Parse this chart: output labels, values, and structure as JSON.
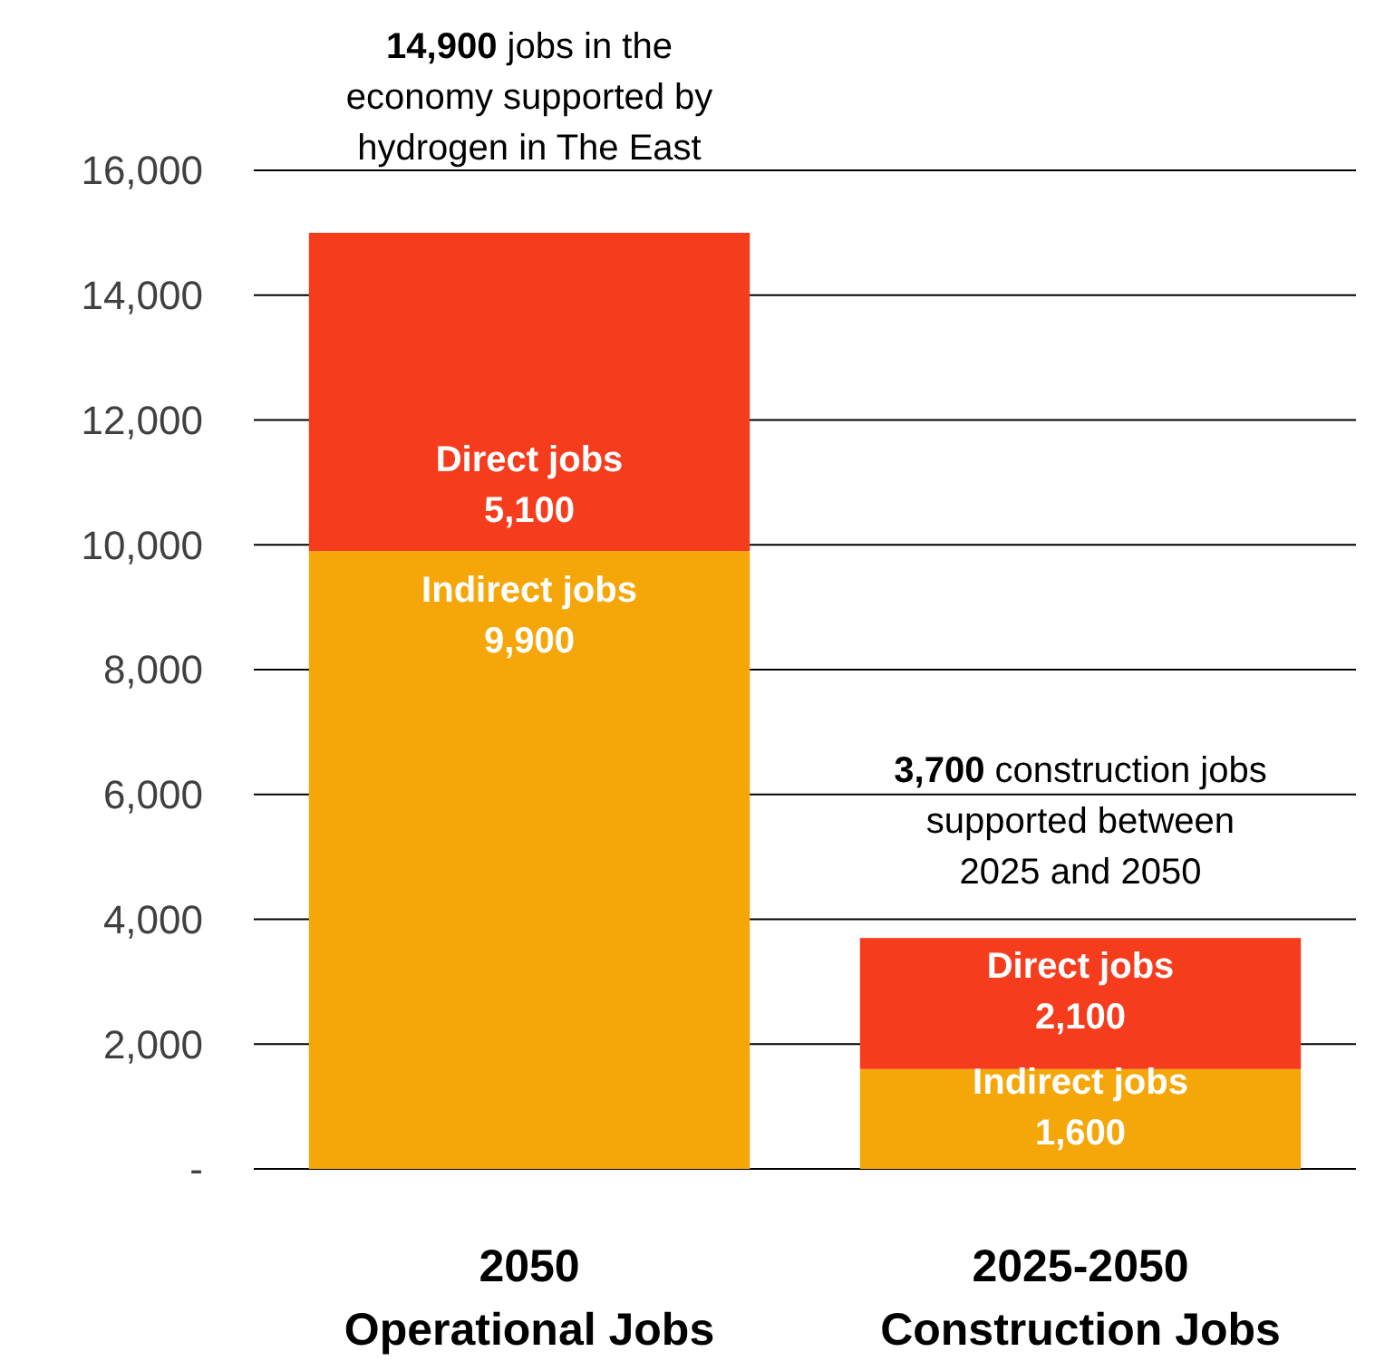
{
  "chart_data": {
    "type": "bar",
    "stacked": true,
    "categories": [
      "2050\nOperational Jobs",
      "2025-2050\nConstruction Jobs"
    ],
    "series": [
      {
        "name": "Indirect jobs",
        "color": "#f5a70a",
        "values": [
          9900,
          1600
        ],
        "value_labels": [
          "9,900",
          "1,600"
        ]
      },
      {
        "name": "Direct jobs",
        "color": "#f53d1e",
        "values": [
          5100,
          2100
        ],
        "value_labels": [
          "5,100",
          "2,100"
        ]
      }
    ],
    "ylim": [
      0,
      16000
    ],
    "yticks": [
      {
        "value": 0,
        "label": "-"
      },
      {
        "value": 2000,
        "label": "2,000"
      },
      {
        "value": 4000,
        "label": "4,000"
      },
      {
        "value": 6000,
        "label": "6,000"
      },
      {
        "value": 8000,
        "label": "8,000"
      },
      {
        "value": 10000,
        "label": "10,000"
      },
      {
        "value": 12000,
        "label": "12,000"
      },
      {
        "value": 14000,
        "label": "14,000"
      },
      {
        "value": 16000,
        "label": "16,000"
      }
    ],
    "grid": "y",
    "annotations": [
      {
        "text": "14,900 jobs in the\neconomy supported by\nhydrogen in The East",
        "x": "2050\nOperational Jobs",
        "y": 14900
      },
      {
        "text": "3,700 construction jobs\nsupported between\n2025 and 2050",
        "x": "2025-2050\nConstruction Jobs",
        "y": 3700
      }
    ]
  }
}
